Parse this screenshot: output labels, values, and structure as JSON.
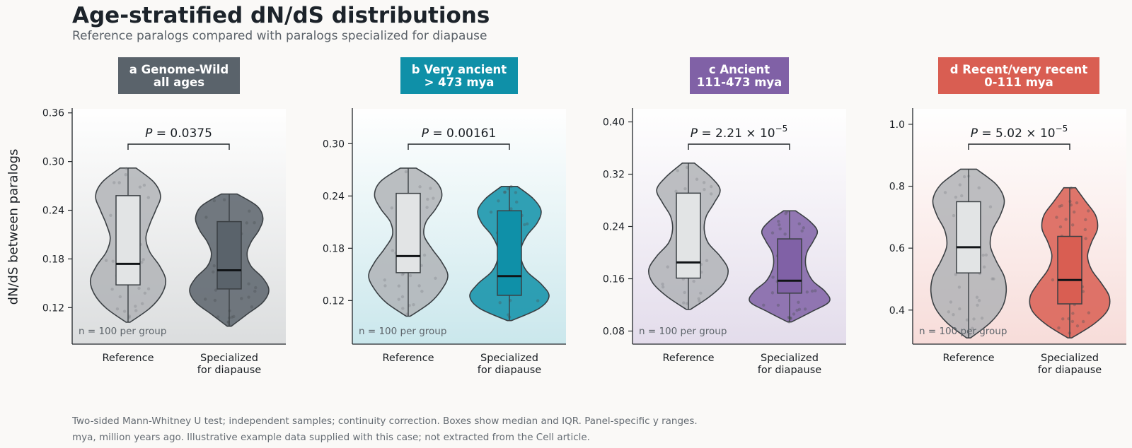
{
  "figure": {
    "title": "Age-stratified dN/dS distributions",
    "subtitle": "Reference paralogs compared with paralogs specialized for diapause",
    "ylabel": "dN/dS between paralogs",
    "footnote_lines": [
      "Two-sided Mann-Whitney U test; independent samples; continuity correction. Boxes show median and IQR. Panel-specific y ranges.",
      "mya, million years ago. Illustrative example data supplied with this case; not extracted from the Cell article."
    ]
  },
  "chart_data": [
    {
      "type": "violin",
      "panel_letter": "a",
      "panel_label_lines": [
        "Genome-Wild",
        "all ages"
      ],
      "color": "#5a636b",
      "ylim": [
        0.075,
        0.365
      ],
      "yticks": [
        0.12,
        0.18,
        0.24,
        0.3,
        0.36
      ],
      "ytick_labels": [
        "0.12",
        "0.18",
        "0.24",
        "0.30",
        "0.36"
      ],
      "categories": [
        "Reference",
        "Specialized\nfor diapause"
      ],
      "n_label": "n = 100 per group",
      "p_label": "P = 0.0375",
      "p_exponent": "",
      "groups": [
        {
          "name": "Reference",
          "min": 0.102,
          "max": 0.292,
          "q1": 0.148,
          "median": 0.174,
          "q3": 0.258,
          "density": [
            0.05,
            0.55,
            0.85,
            0.95,
            0.8,
            0.55,
            0.45,
            0.55,
            0.7,
            0.82,
            0.65,
            0.2
          ]
        },
        {
          "name": "Specialized for diapause",
          "min": 0.097,
          "max": 0.26,
          "q1": 0.143,
          "median": 0.166,
          "q3": 0.226,
          "density": [
            0.05,
            0.45,
            0.85,
            1.0,
            0.85,
            0.55,
            0.45,
            0.55,
            0.75,
            0.85,
            0.7,
            0.2
          ]
        }
      ]
    },
    {
      "type": "violin",
      "panel_letter": "b",
      "panel_label_lines": [
        "Very ancient",
        "> 473 mya"
      ],
      "color": "#0f90a8",
      "ylim": [
        0.07,
        0.34
      ],
      "yticks": [
        0.12,
        0.18,
        0.24,
        0.3
      ],
      "ytick_labels": [
        "0.12",
        "0.18",
        "0.24",
        "0.30"
      ],
      "categories": [
        "Reference",
        "Specialized\nfor diapause"
      ],
      "n_label": "n = 100 per group",
      "p_label": "P = 0.00161",
      "p_exponent": "",
      "groups": [
        {
          "name": "Reference",
          "min": 0.102,
          "max": 0.272,
          "q1": 0.152,
          "median": 0.171,
          "q3": 0.243,
          "density": [
            0.05,
            0.55,
            0.85,
            1.0,
            0.85,
            0.6,
            0.4,
            0.45,
            0.7,
            0.85,
            0.7,
            0.2
          ]
        },
        {
          "name": "Specialized for diapause",
          "min": 0.097,
          "max": 0.251,
          "q1": 0.126,
          "median": 0.148,
          "q3": 0.223,
          "density": [
            0.05,
            0.75,
            1.0,
            0.8,
            0.45,
            0.3,
            0.3,
            0.45,
            0.7,
            0.8,
            0.6,
            0.2
          ]
        }
      ]
    },
    {
      "type": "violin",
      "panel_letter": "c",
      "panel_label_lines": [
        "Ancient",
        "111-473 mya"
      ],
      "color": "#8061a6",
      "ylim": [
        0.06,
        0.42
      ],
      "yticks": [
        0.08,
        0.16,
        0.24,
        0.32,
        0.4
      ],
      "ytick_labels": [
        "0.08",
        "0.16",
        "0.24",
        "0.32",
        "0.40"
      ],
      "categories": [
        "Reference",
        "Specialized\nfor diapause"
      ],
      "n_label": "n = 100 per group",
      "p_label": "P = 2.21 × 10",
      "p_exponent": "−5",
      "groups": [
        {
          "name": "Reference",
          "min": 0.113,
          "max": 0.337,
          "q1": 0.161,
          "median": 0.185,
          "q3": 0.291,
          "density": [
            0.05,
            0.55,
            0.9,
            1.0,
            0.8,
            0.5,
            0.4,
            0.45,
            0.65,
            0.8,
            0.55,
            0.15
          ]
        },
        {
          "name": "Specialized for diapause",
          "min": 0.094,
          "max": 0.264,
          "q1": 0.138,
          "median": 0.157,
          "q3": 0.221,
          "density": [
            0.05,
            0.55,
            1.0,
            0.9,
            0.6,
            0.45,
            0.4,
            0.45,
            0.6,
            0.7,
            0.5,
            0.15
          ]
        }
      ]
    },
    {
      "type": "violin",
      "panel_letter": "d",
      "panel_label_lines": [
        "Recent/very recent",
        "0-111 mya"
      ],
      "color": "#d95e52",
      "ylim": [
        0.29,
        1.05
      ],
      "yticks": [
        0.4,
        0.6,
        0.8,
        1.0
      ],
      "ytick_labels": [
        "0.4",
        "0.6",
        "0.8",
        "1.0"
      ],
      "categories": [
        "Reference",
        "Specialized\nfor diapause"
      ],
      "n_label": "n = 100 per group",
      "p_label": "P = 5.02 × 10",
      "p_exponent": "−5",
      "groups": [
        {
          "name": "Reference",
          "min": 0.31,
          "max": 0.855,
          "q1": 0.52,
          "median": 0.603,
          "q3": 0.75,
          "density": [
            0.05,
            0.55,
            0.85,
            0.95,
            0.9,
            0.7,
            0.55,
            0.6,
            0.8,
            0.9,
            0.7,
            0.2
          ]
        },
        {
          "name": "Specialized for diapause",
          "min": 0.31,
          "max": 0.795,
          "q1": 0.42,
          "median": 0.497,
          "q3": 0.638,
          "density": [
            0.05,
            0.6,
            0.95,
            1.0,
            0.8,
            0.55,
            0.45,
            0.55,
            0.7,
            0.65,
            0.4,
            0.15
          ]
        }
      ]
    }
  ]
}
